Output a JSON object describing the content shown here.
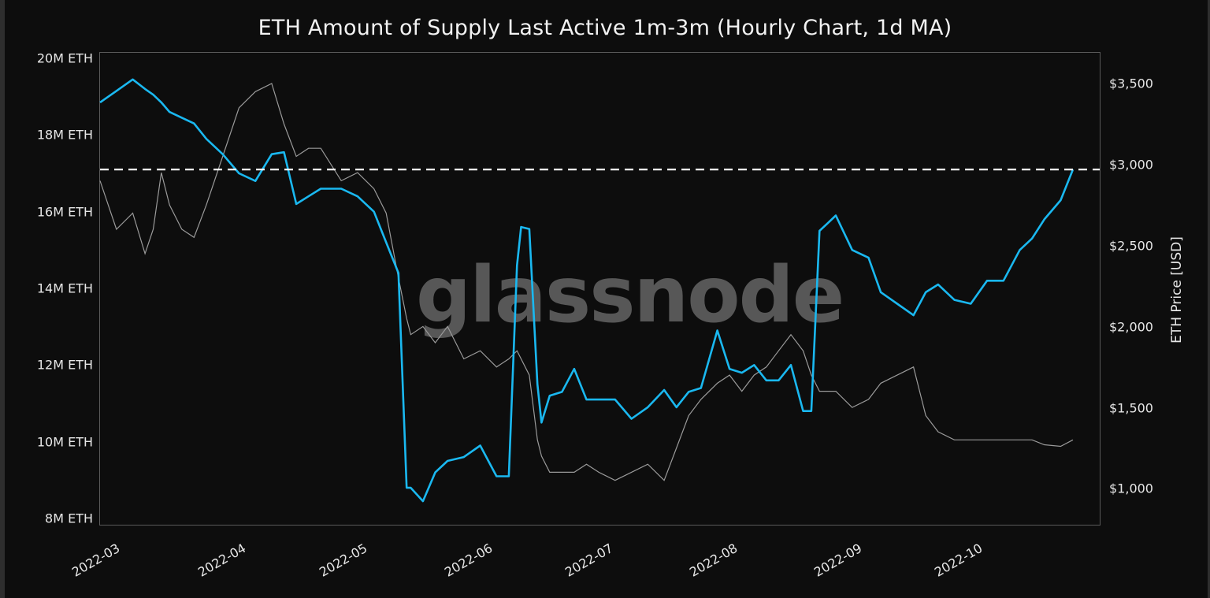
{
  "chart_data": {
    "type": "line",
    "title": "ETH Amount of Supply Last Active 1m-3m (Hourly Chart, 1d MA)",
    "xlabel": "",
    "ylabel_left": "",
    "ylabel_right": "ETH Price [USD]",
    "x_ticks": [
      "2022-03",
      "2022-04",
      "2022-05",
      "2022-06",
      "2022-07",
      "2022-08",
      "2022-09",
      "2022-10"
    ],
    "y_left_ticks": [
      "8M ETH",
      "10M ETH",
      "12M ETH",
      "14M ETH",
      "16M ETH",
      "18M ETH",
      "20M ETH"
    ],
    "y_right_ticks": [
      "$1,000",
      "$1,500",
      "$2,000",
      "$2,500",
      "$3,000",
      "$3,500"
    ],
    "y_left_range": [
      7.8,
      20.2
    ],
    "y_right_range": [
      780,
      3700
    ],
    "grid": false,
    "watermark": "glassnode",
    "reference_line": {
      "axis": "left",
      "value": 17.1,
      "style": "dashed",
      "color": "#ffffff"
    },
    "x": [
      "2022-02-25",
      "2022-03-01",
      "2022-03-05",
      "2022-03-08",
      "2022-03-10",
      "2022-03-12",
      "2022-03-14",
      "2022-03-17",
      "2022-03-20",
      "2022-03-23",
      "2022-03-27",
      "2022-03-31",
      "2022-04-04",
      "2022-04-08",
      "2022-04-11",
      "2022-04-14",
      "2022-04-17",
      "2022-04-20",
      "2022-04-25",
      "2022-04-29",
      "2022-05-03",
      "2022-05-06",
      "2022-05-09",
      "2022-05-11",
      "2022-05-12",
      "2022-05-15",
      "2022-05-18",
      "2022-05-21",
      "2022-05-25",
      "2022-05-29",
      "2022-06-02",
      "2022-06-05",
      "2022-06-07",
      "2022-06-08",
      "2022-06-10",
      "2022-06-12",
      "2022-06-13",
      "2022-06-15",
      "2022-06-18",
      "2022-06-21",
      "2022-06-24",
      "2022-06-27",
      "2022-07-01",
      "2022-07-05",
      "2022-07-09",
      "2022-07-13",
      "2022-07-16",
      "2022-07-19",
      "2022-07-22",
      "2022-07-26",
      "2022-07-29",
      "2022-08-01",
      "2022-08-04",
      "2022-08-07",
      "2022-08-10",
      "2022-08-13",
      "2022-08-16",
      "2022-08-18",
      "2022-08-20",
      "2022-08-22",
      "2022-08-24",
      "2022-08-28",
      "2022-09-01",
      "2022-09-04",
      "2022-09-08",
      "2022-09-12",
      "2022-09-15",
      "2022-09-18",
      "2022-09-22",
      "2022-09-26",
      "2022-09-30",
      "2022-10-04",
      "2022-10-08",
      "2022-10-11",
      "2022-10-14",
      "2022-10-18",
      "2022-10-21"
    ],
    "series": [
      {
        "name": "Supply Last Active 1m-3m (M ETH)",
        "axis": "left",
        "color": "#1ab8f0",
        "values": [
          18.85,
          19.15,
          19.45,
          19.2,
          19.05,
          18.85,
          18.6,
          18.45,
          18.3,
          17.9,
          17.5,
          17.0,
          16.8,
          17.5,
          17.55,
          16.2,
          16.4,
          16.6,
          16.6,
          16.4,
          16.0,
          15.2,
          14.4,
          8.8,
          8.8,
          8.45,
          9.2,
          9.5,
          9.6,
          9.9,
          9.1,
          9.1,
          14.6,
          15.6,
          15.55,
          11.5,
          10.5,
          11.2,
          11.3,
          11.9,
          11.1,
          11.1,
          11.1,
          10.6,
          10.9,
          11.35,
          10.9,
          11.3,
          11.4,
          12.9,
          11.9,
          11.8,
          12.0,
          11.6,
          11.6,
          12.0,
          10.8,
          10.8,
          15.5,
          15.7,
          15.9,
          15.0,
          14.8,
          13.9,
          13.6,
          13.3,
          13.9,
          14.1,
          13.7,
          13.6,
          14.2,
          14.2,
          15.0,
          15.3,
          15.8,
          16.3,
          17.1
        ]
      },
      {
        "name": "ETH Price (USD)",
        "axis": "right",
        "color": "#9a9a9a",
        "values": [
          2900,
          2600,
          2700,
          2450,
          2600,
          2950,
          2750,
          2600,
          2550,
          2750,
          3050,
          3350,
          3450,
          3500,
          3250,
          3050,
          3100,
          3100,
          2900,
          2950,
          2850,
          2700,
          2300,
          2050,
          1950,
          2000,
          1900,
          2000,
          1800,
          1850,
          1750,
          1800,
          1850,
          1800,
          1700,
          1300,
          1200,
          1100,
          1100,
          1100,
          1150,
          1100,
          1050,
          1100,
          1150,
          1050,
          1250,
          1450,
          1550,
          1650,
          1700,
          1600,
          1700,
          1750,
          1850,
          1950,
          1850,
          1700,
          1600,
          1600,
          1600,
          1500,
          1550,
          1650,
          1700,
          1750,
          1450,
          1350,
          1300,
          1300,
          1300,
          1300,
          1300,
          1300,
          1270,
          1260,
          1300
        ]
      }
    ]
  }
}
